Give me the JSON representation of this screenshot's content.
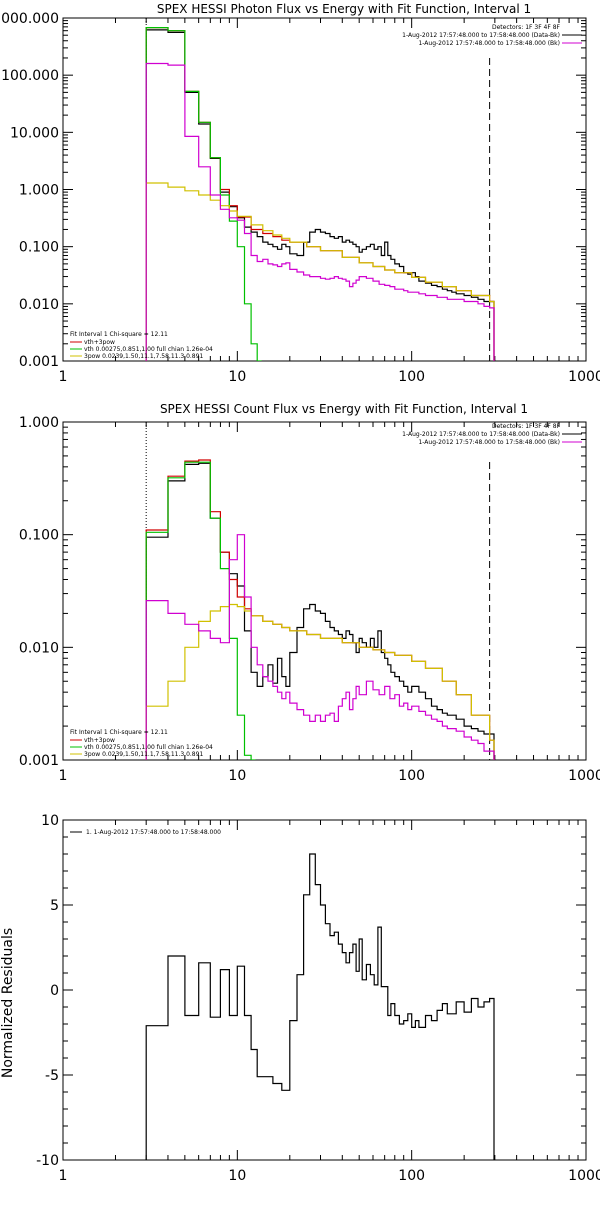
{
  "chart_data": [
    {
      "type": "line",
      "title": "SPEX HESSI Photon Flux vs Energy with Fit Function, Interval 1",
      "xlabel": "",
      "ylabel": "",
      "xscale": "log",
      "yscale": "log",
      "xlim": [
        1,
        1000
      ],
      "ylim": [
        0.001,
        1000
      ],
      "xticks": [
        "1",
        "10",
        "100",
        "1000"
      ],
      "yticks": [
        "0.001",
        "0.010",
        "0.100",
        "1.000",
        "10.000",
        "100.000",
        "1000.000"
      ],
      "legend_top": [
        "Detectors: 1F 3F 4F 8F",
        "1-Aug-2012 17:57:48.000 to 17:58:48.000 (Data-Bk)",
        "1-Aug-2012 17:57:48.000 to 17:58:48.000 (Bk)"
      ],
      "legend_top_colors": [
        "#000000",
        "#d000d0"
      ],
      "legend_bottom": [
        "Fit Interval 1    Chi-square = 12.11",
        "vth+3pow",
        "vth 0.00275,0.851,1.00  full chian 1.26e-04",
        "3pow 0.0239,1.50,11.1,7.58,11.3,0.891"
      ],
      "legend_bottom_colors": [
        "#d00000",
        "#00c000",
        "#d0c000"
      ],
      "fit_range": [
        3,
        280
      ],
      "series": [
        {
          "name": "Data-Bk",
          "color": "#000000",
          "x": [
            3,
            4,
            5,
            6,
            7,
            8,
            9,
            10,
            11,
            12,
            13,
            14,
            15,
            16,
            17,
            18,
            19,
            20,
            22,
            24,
            26,
            28,
            30,
            32,
            34,
            36,
            38,
            40,
            42,
            44,
            46,
            48,
            50,
            52,
            55,
            58,
            61,
            64,
            67,
            70,
            73,
            76,
            80,
            85,
            90,
            95,
            100,
            105,
            110,
            115,
            120,
            130,
            140,
            150,
            160,
            170,
            180,
            190,
            200,
            220,
            240,
            260,
            280
          ],
          "y": [
            620,
            560,
            50,
            14,
            3.5,
            0.9,
            0.5,
            0.32,
            0.22,
            0.18,
            0.15,
            0.12,
            0.11,
            0.1,
            0.09,
            0.11,
            0.1,
            0.075,
            0.07,
            0.12,
            0.18,
            0.2,
            0.18,
            0.17,
            0.15,
            0.14,
            0.15,
            0.12,
            0.13,
            0.12,
            0.11,
            0.1,
            0.08,
            0.09,
            0.1,
            0.11,
            0.09,
            0.1,
            0.07,
            0.12,
            0.07,
            0.06,
            0.05,
            0.045,
            0.035,
            0.033,
            0.035,
            0.03,
            0.025,
            0.025,
            0.023,
            0.021,
            0.02,
            0.018,
            0.017,
            0.016,
            0.015,
            0.015,
            0.014,
            0.013,
            0.012,
            0.011,
            0.011
          ]
        },
        {
          "name": "vth+3pow",
          "color": "#d00000",
          "x": [
            3,
            4,
            5,
            6,
            7,
            8,
            9,
            10,
            12,
            14,
            16,
            18,
            20,
            25,
            30,
            40,
            50,
            60,
            70,
            80,
            100,
            120,
            150,
            180,
            220,
            280
          ],
          "y": [
            680,
            600,
            52,
            15,
            3.6,
            1.0,
            0.52,
            0.33,
            0.2,
            0.17,
            0.15,
            0.13,
            0.12,
            0.1,
            0.085,
            0.065,
            0.052,
            0.045,
            0.039,
            0.035,
            0.029,
            0.024,
            0.02,
            0.017,
            0.014,
            0.011
          ]
        },
        {
          "name": "vth",
          "color": "#00c000",
          "x": [
            3,
            4,
            5,
            6,
            7,
            8,
            9,
            10,
            11,
            12,
            13
          ],
          "y": [
            680,
            600,
            52,
            15,
            3.6,
            0.8,
            0.28,
            0.1,
            0.01,
            0.002,
            0.0009
          ]
        },
        {
          "name": "3pow",
          "color": "#d0c000",
          "x": [
            3,
            4,
            5,
            6,
            7,
            8,
            9,
            10,
            12,
            14,
            16,
            18,
            20,
            25,
            30,
            40,
            50,
            60,
            70,
            80,
            100,
            120,
            150,
            180,
            220,
            280
          ],
          "y": [
            1.3,
            1.1,
            0.95,
            0.8,
            0.65,
            0.52,
            0.42,
            0.34,
            0.24,
            0.19,
            0.16,
            0.14,
            0.12,
            0.1,
            0.085,
            0.065,
            0.052,
            0.045,
            0.039,
            0.035,
            0.029,
            0.024,
            0.02,
            0.017,
            0.014,
            0.011
          ]
        },
        {
          "name": "Bk",
          "color": "#d000d0",
          "x": [
            3,
            4,
            5,
            6,
            7,
            8,
            9,
            10,
            11,
            12,
            13,
            14,
            15,
            16,
            17,
            18,
            19,
            20,
            22,
            24,
            26,
            28,
            30,
            32,
            34,
            36,
            38,
            40,
            42,
            44,
            46,
            48,
            50,
            55,
            60,
            65,
            70,
            75,
            80,
            85,
            90,
            95,
            100,
            110,
            120,
            130,
            140,
            150,
            160,
            180,
            200,
            220,
            240,
            260,
            280
          ],
          "y": [
            160,
            150,
            8.5,
            2.5,
            0.8,
            0.45,
            0.32,
            0.29,
            0.17,
            0.07,
            0.055,
            0.06,
            0.05,
            0.048,
            0.045,
            0.05,
            0.052,
            0.04,
            0.036,
            0.032,
            0.03,
            0.03,
            0.028,
            0.027,
            0.028,
            0.03,
            0.028,
            0.027,
            0.025,
            0.02,
            0.023,
            0.026,
            0.03,
            0.028,
            0.025,
            0.022,
            0.021,
            0.02,
            0.018,
            0.018,
            0.017,
            0.016,
            0.016,
            0.015,
            0.014,
            0.014,
            0.013,
            0.013,
            0.012,
            0.012,
            0.011,
            0.011,
            0.01,
            0.009,
            0.0085
          ]
        }
      ]
    },
    {
      "type": "line",
      "title": "SPEX HESSI Count Flux vs Energy with Fit Function, Interval 1",
      "xlabel": "",
      "ylabel": "",
      "xscale": "log",
      "yscale": "log",
      "xlim": [
        1,
        1000
      ],
      "ylim": [
        0.001,
        1
      ],
      "xticks": [
        "1",
        "10",
        "100",
        "1000"
      ],
      "yticks": [
        "0.001",
        "0.010",
        "0.100",
        "1.000"
      ],
      "legend_top": [
        "Detectors: 1F 3F 4F 8F",
        "1-Aug-2012 17:57:48.000 to 17:58:48.000 (Data-Bk)",
        "1-Aug-2012 17:57:48.000 to 17:58:48.000 (Bk)"
      ],
      "legend_top_colors": [
        "#000000",
        "#d000d0"
      ],
      "legend_bottom": [
        "Fit Interval 1    Chi-square = 12.11",
        "vth+3pow",
        "vth 0.00275,0.851,1.00  full chian 1.26e-04",
        "3pow 0.0239,1.50,11.1,7.58,11.3,0.891"
      ],
      "legend_bottom_colors": [
        "#d00000",
        "#00c000",
        "#d0c000"
      ],
      "fit_range": [
        3,
        280
      ],
      "series": [
        {
          "name": "Data-Bk",
          "color": "#000000",
          "x": [
            3,
            4,
            5,
            6,
            7,
            8,
            9,
            10,
            11,
            12,
            13,
            14,
            15,
            16,
            17,
            18,
            19,
            20,
            22,
            24,
            26,
            28,
            30,
            32,
            34,
            36,
            38,
            40,
            42,
            44,
            46,
            48,
            50,
            52,
            55,
            58,
            61,
            64,
            67,
            70,
            73,
            76,
            80,
            85,
            90,
            95,
            100,
            110,
            120,
            130,
            140,
            150,
            160,
            180,
            200,
            220,
            240,
            260,
            280
          ],
          "y": [
            0.095,
            0.3,
            0.42,
            0.43,
            0.14,
            0.07,
            0.045,
            0.035,
            0.014,
            0.006,
            0.0045,
            0.0055,
            0.007,
            0.0048,
            0.008,
            0.0055,
            0.0045,
            0.009,
            0.015,
            0.022,
            0.024,
            0.021,
            0.02,
            0.017,
            0.015,
            0.014,
            0.013,
            0.012,
            0.014,
            0.013,
            0.011,
            0.009,
            0.012,
            0.011,
            0.01,
            0.012,
            0.01,
            0.014,
            0.009,
            0.008,
            0.007,
            0.006,
            0.0055,
            0.005,
            0.0045,
            0.004,
            0.0045,
            0.004,
            0.0035,
            0.003,
            0.0028,
            0.0026,
            0.0025,
            0.0023,
            0.002,
            0.0019,
            0.0018,
            0.0017,
            0.0017
          ]
        },
        {
          "name": "vth+3pow",
          "color": "#d00000",
          "x": [
            3,
            4,
            5,
            6,
            7,
            8,
            9,
            10,
            11,
            12,
            14,
            16,
            18,
            20,
            25,
            30,
            40,
            50,
            60,
            70,
            80,
            100,
            120,
            150,
            180,
            220,
            280
          ],
          "y": [
            0.11,
            0.33,
            0.45,
            0.46,
            0.16,
            0.07,
            0.04,
            0.028,
            0.022,
            0.019,
            0.017,
            0.016,
            0.015,
            0.014,
            0.013,
            0.012,
            0.011,
            0.01,
            0.0095,
            0.009,
            0.0085,
            0.0075,
            0.0065,
            0.005,
            0.0038,
            0.0025,
            0.0015
          ]
        },
        {
          "name": "vth",
          "color": "#00c000",
          "x": [
            3,
            4,
            5,
            6,
            7,
            8,
            9,
            10,
            11,
            12
          ],
          "y": [
            0.105,
            0.32,
            0.44,
            0.44,
            0.14,
            0.05,
            0.012,
            0.0025,
            0.0011,
            0.0009
          ]
        },
        {
          "name": "3pow",
          "color": "#d0c000",
          "x": [
            3,
            4,
            5,
            6,
            7,
            8,
            9,
            10,
            11,
            12,
            14,
            16,
            18,
            20,
            25,
            30,
            40,
            50,
            60,
            70,
            80,
            100,
            120,
            150,
            180,
            220,
            280
          ],
          "y": [
            0.003,
            0.005,
            0.01,
            0.017,
            0.021,
            0.023,
            0.024,
            0.023,
            0.021,
            0.019,
            0.017,
            0.016,
            0.015,
            0.014,
            0.013,
            0.012,
            0.011,
            0.01,
            0.0095,
            0.009,
            0.0085,
            0.0075,
            0.0065,
            0.005,
            0.0038,
            0.0025,
            0.0015
          ]
        },
        {
          "name": "Bk",
          "color": "#d000d0",
          "x": [
            3,
            4,
            5,
            6,
            7,
            8,
            9,
            10,
            11,
            12,
            13,
            14,
            15,
            16,
            17,
            18,
            19,
            20,
            22,
            24,
            26,
            28,
            30,
            32,
            34,
            36,
            38,
            40,
            42,
            44,
            46,
            48,
            50,
            55,
            60,
            65,
            70,
            75,
            80,
            85,
            90,
            95,
            100,
            110,
            120,
            130,
            140,
            150,
            160,
            180,
            200,
            220,
            240,
            260,
            280
          ],
          "y": [
            0.026,
            0.02,
            0.016,
            0.014,
            0.012,
            0.011,
            0.06,
            0.1,
            0.028,
            0.01,
            0.007,
            0.0055,
            0.005,
            0.0045,
            0.004,
            0.0035,
            0.004,
            0.0032,
            0.0028,
            0.0025,
            0.0022,
            0.0025,
            0.0022,
            0.0025,
            0.0026,
            0.0022,
            0.003,
            0.0035,
            0.004,
            0.0028,
            0.0035,
            0.0045,
            0.0038,
            0.005,
            0.0042,
            0.0038,
            0.0045,
            0.0035,
            0.0038,
            0.003,
            0.0032,
            0.0028,
            0.003,
            0.0027,
            0.0025,
            0.0023,
            0.0022,
            0.002,
            0.0019,
            0.0018,
            0.0016,
            0.0015,
            0.0014,
            0.0012,
            0.0012
          ]
        }
      ]
    },
    {
      "type": "line",
      "title": "",
      "xlabel": "",
      "ylabel": "Normalized Residuals",
      "xscale": "log",
      "yscale": "linear",
      "xlim": [
        1,
        1000
      ],
      "ylim": [
        -10,
        10
      ],
      "xticks": [
        "1",
        "10",
        "100",
        "1000"
      ],
      "yticks": [
        "-10",
        "-5",
        "0",
        "5",
        "10"
      ],
      "legend": [
        "1.  1-Aug-2012 17:57:48.000 to 17:58:48.000"
      ],
      "series": [
        {
          "name": "1.  1-Aug-2012 17:57:48.000 to 17:58:48.000",
          "color": "#000000",
          "x": [
            3,
            4,
            5,
            6,
            7,
            8,
            9,
            10,
            11,
            12,
            13,
            14,
            15,
            16,
            17,
            18,
            19,
            20,
            22,
            24,
            26,
            28,
            30,
            32,
            34,
            36,
            38,
            40,
            42,
            44,
            46,
            48,
            50,
            52,
            55,
            58,
            61,
            64,
            67,
            70,
            73,
            76,
            80,
            85,
            90,
            95,
            100,
            105,
            110,
            120,
            130,
            140,
            150,
            160,
            180,
            200,
            220,
            240,
            260,
            280
          ],
          "y": [
            -2.1,
            2.0,
            -1.5,
            1.6,
            -1.6,
            1.2,
            -1.5,
            1.4,
            -1.5,
            -3.5,
            -5.1,
            -5.1,
            -5.1,
            -5.5,
            -5.5,
            -5.9,
            -5.9,
            -1.8,
            0.9,
            5.6,
            8.0,
            6.2,
            5.0,
            3.9,
            3.2,
            3.4,
            2.7,
            2.2,
            1.6,
            2.2,
            2.7,
            1.1,
            3.0,
            0.6,
            1.5,
            0.9,
            0.3,
            3.7,
            0.2,
            0.2,
            -1.5,
            -0.8,
            -1.5,
            -2.0,
            -1.8,
            -1.4,
            -2.2,
            -1.8,
            -2.2,
            -1.5,
            -1.8,
            -1.2,
            -0.8,
            -1.4,
            -0.7,
            -1.3,
            -0.5,
            -1.0,
            -0.7,
            -0.5
          ]
        }
      ]
    }
  ]
}
